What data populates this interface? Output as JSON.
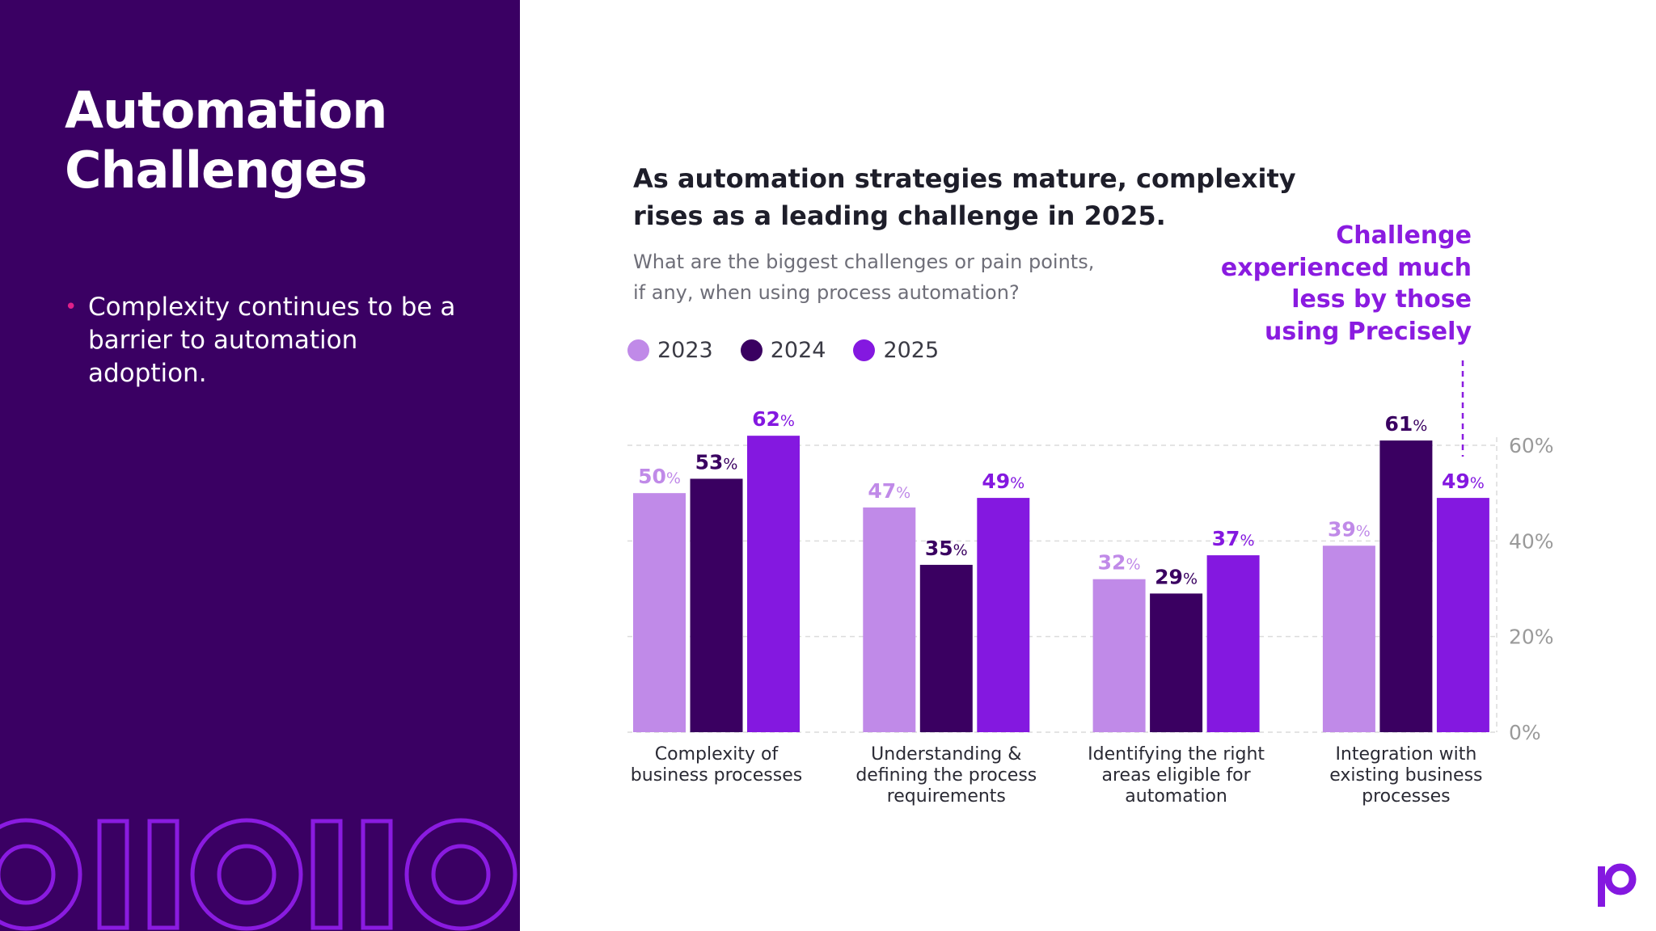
{
  "left_panel": {
    "title_lines": [
      "Automation",
      "Challenges"
    ],
    "bullet": "Complexity continues to be a barrier to automation adoption.",
    "background": "#3a0063"
  },
  "chart_data": {
    "type": "bar",
    "title": "As automation strategies mature, complexity rises as a leading challenge in 2025.",
    "subtitle_lines": [
      "What are the biggest challenges or pain points,",
      "if any, when using process automation?"
    ],
    "categories": [
      [
        "Complexity of",
        "business processes"
      ],
      [
        "Understanding &",
        "defining the process",
        "requirements"
      ],
      [
        "Identifying the right",
        "areas eligible for",
        "automation"
      ],
      [
        "Integration with",
        "existing business",
        "processes"
      ]
    ],
    "series": [
      {
        "name": "2023",
        "values": [
          50,
          47,
          32,
          39
        ],
        "color": "#c08ae8"
      },
      {
        "name": "2024",
        "values": [
          53,
          35,
          29,
          61
        ],
        "color": "#3a0061"
      },
      {
        "name": "2025",
        "values": [
          62,
          49,
          37,
          49
        ],
        "color": "#8418e0"
      }
    ],
    "value_suffix": "%",
    "yticks": [
      "0%",
      "20%",
      "40%",
      "60%"
    ],
    "ylim": [
      0,
      60
    ],
    "y_axis_position": "right",
    "grid": true,
    "legend_placement": "top-left",
    "annotation_lines": [
      "Challenge",
      "experienced much",
      "less by those",
      "using Precisely"
    ],
    "annotation_color": "#8a1be0"
  }
}
